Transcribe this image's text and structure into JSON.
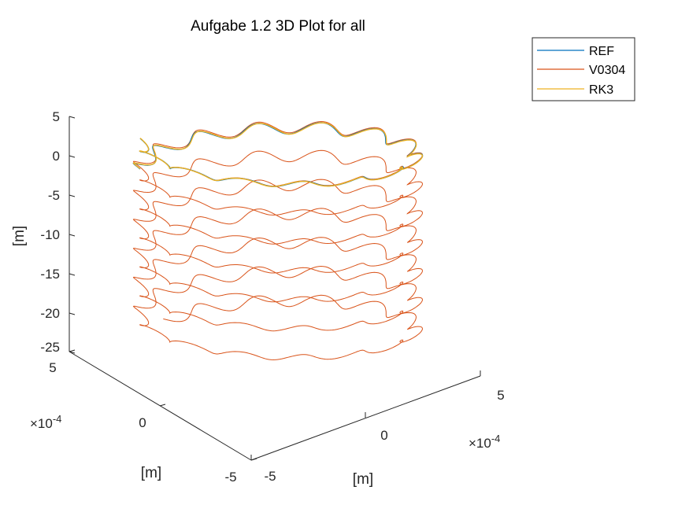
{
  "chart_data": {
    "type": "line",
    "title": "Aufgabe 1.2 3D Plot for all",
    "legend": {
      "placement": "top-right",
      "entries": [
        "REF",
        "V0304",
        "RK3"
      ]
    },
    "axes": {
      "z": {
        "label": "[m]",
        "ticks": [
          "5",
          "0",
          "-5",
          "-10",
          "-15",
          "-20",
          "-25"
        ],
        "lim": [
          -25,
          5
        ]
      },
      "x": {
        "label": "[m]",
        "ticks": [
          "5",
          "0",
          "-5"
        ],
        "exponent": "×10",
        "exponent_power": "-4"
      },
      "y": {
        "label": "[m]",
        "ticks": [
          "-5",
          "0",
          "5"
        ],
        "exponent": "×10",
        "exponent_power": "-4"
      }
    },
    "grid": false,
    "series": [
      {
        "name": "REF",
        "color": "#0072BD",
        "z_start": 0.4,
        "z_end": -3.5,
        "turns": 1.0,
        "amplitude": 1.6
      },
      {
        "name": "V0304",
        "color": "#D95319",
        "z_start": 0.4,
        "z_end": -25.0,
        "turns": 6.9,
        "amplitude": 1.6
      },
      {
        "name": "RK3",
        "color": "#EDB120",
        "z_start": 0.4,
        "z_end": -3.5,
        "turns": 1.0,
        "amplitude": 1.6
      }
    ]
  }
}
